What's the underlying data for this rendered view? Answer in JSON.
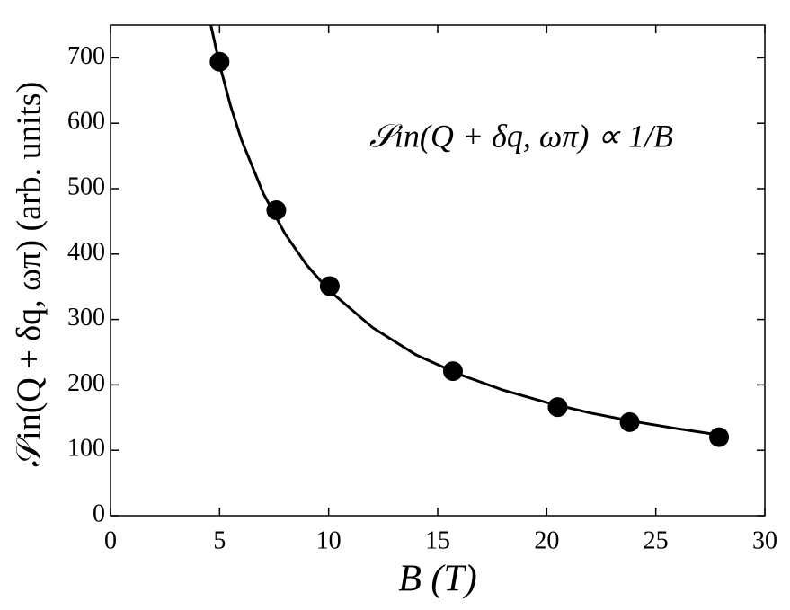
{
  "chart_data": {
    "type": "scatter",
    "x_label": "B (T)",
    "y_label": "𝒮in(Q + δq, ωπ) (arb. units)",
    "annotation": "𝒮in(Q + δq, ωπ) ∝ 1/B",
    "xlim": [
      0,
      30
    ],
    "xticks": [
      0,
      5,
      10,
      15,
      20,
      25,
      30
    ],
    "ylim": [
      0,
      750
    ],
    "yticks": [
      0,
      100,
      200,
      300,
      400,
      500,
      600,
      700
    ],
    "series": [
      {
        "style": "markers",
        "color": "#000000",
        "x": [
          5.0,
          7.6,
          10.05,
          15.7,
          20.5,
          23.8,
          27.9
        ],
        "values": [
          694,
          467,
          351,
          221,
          166,
          143,
          120
        ]
      },
      {
        "style": "line",
        "color": "#000000",
        "x": [
          4.6,
          5,
          5.5,
          6,
          7,
          8,
          9,
          10,
          12,
          14,
          16,
          18,
          20,
          22,
          24,
          26,
          28
        ],
        "values": [
          750,
          690,
          627,
          575,
          493,
          431,
          383,
          345,
          288,
          246,
          216,
          192,
          173,
          157,
          144,
          133,
          123
        ]
      }
    ]
  }
}
